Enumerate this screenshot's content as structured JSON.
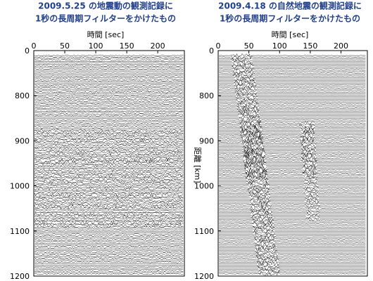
{
  "chart_data": [
    {
      "type": "seismogram",
      "title": "2009.5.25 の地震動の観測記録に",
      "subtitle": "1秒の長周期フィルターをかけたもの",
      "x_label": "時間 [sec]",
      "xlim": [
        0,
        243
      ],
      "xticks": [
        0,
        50,
        100,
        150,
        200
      ],
      "ylim": [
        700,
        1200
      ],
      "yticks": [
        {
          "value": 700,
          "label": "0"
        },
        800,
        900,
        1000,
        1100,
        1200
      ]
    },
    {
      "type": "seismogram",
      "title": "2009.4.18 の自然地震の観測記録に",
      "subtitle": "1秒の長周期フィルターをかけたもの",
      "x_label": "時間 [sec]",
      "y_label": "距離 [km]",
      "xlim": [
        0,
        243
      ],
      "xticks": [
        0,
        50,
        100,
        150,
        200
      ],
      "ylim": [
        700,
        1200
      ],
      "yticks": [
        {
          "value": 700,
          "label": "0"
        },
        800,
        900,
        1000,
        1100,
        1200
      ]
    }
  ]
}
